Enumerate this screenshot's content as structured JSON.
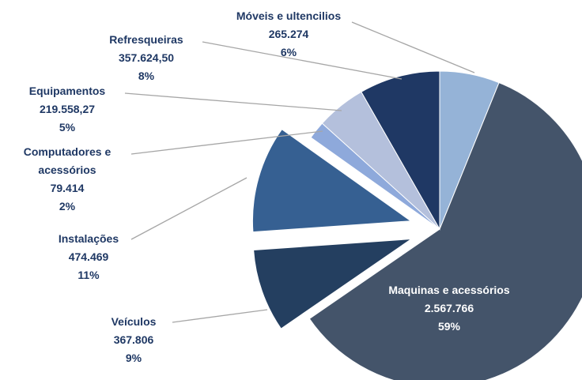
{
  "chart_data": {
    "type": "pie",
    "categories": [
      "Móveis e ultencilios",
      "Maquinas e acessórios",
      "Veículos",
      "Instalações",
      "Computadores e acessórios",
      "Equipamentos",
      "Refresqueiras"
    ],
    "values": [
      265274,
      2567766,
      367806,
      474469,
      79414,
      219558.27,
      357624.5
    ],
    "value_labels": [
      "265.274",
      "2.567.766",
      "367.806",
      "474.469",
      "79.414",
      "219.558,27",
      "357.624,50"
    ],
    "percent_labels": [
      "6%",
      "59%",
      "9%",
      "11%",
      "2%",
      "5%",
      "8%"
    ],
    "colors": [
      "#95b3d7",
      "#44546a",
      "#243f60",
      "#366092",
      "#8ea9db",
      "#b4c0dc",
      "#1f3864"
    ],
    "explode": [
      false,
      false,
      true,
      true,
      false,
      false,
      false
    ]
  }
}
